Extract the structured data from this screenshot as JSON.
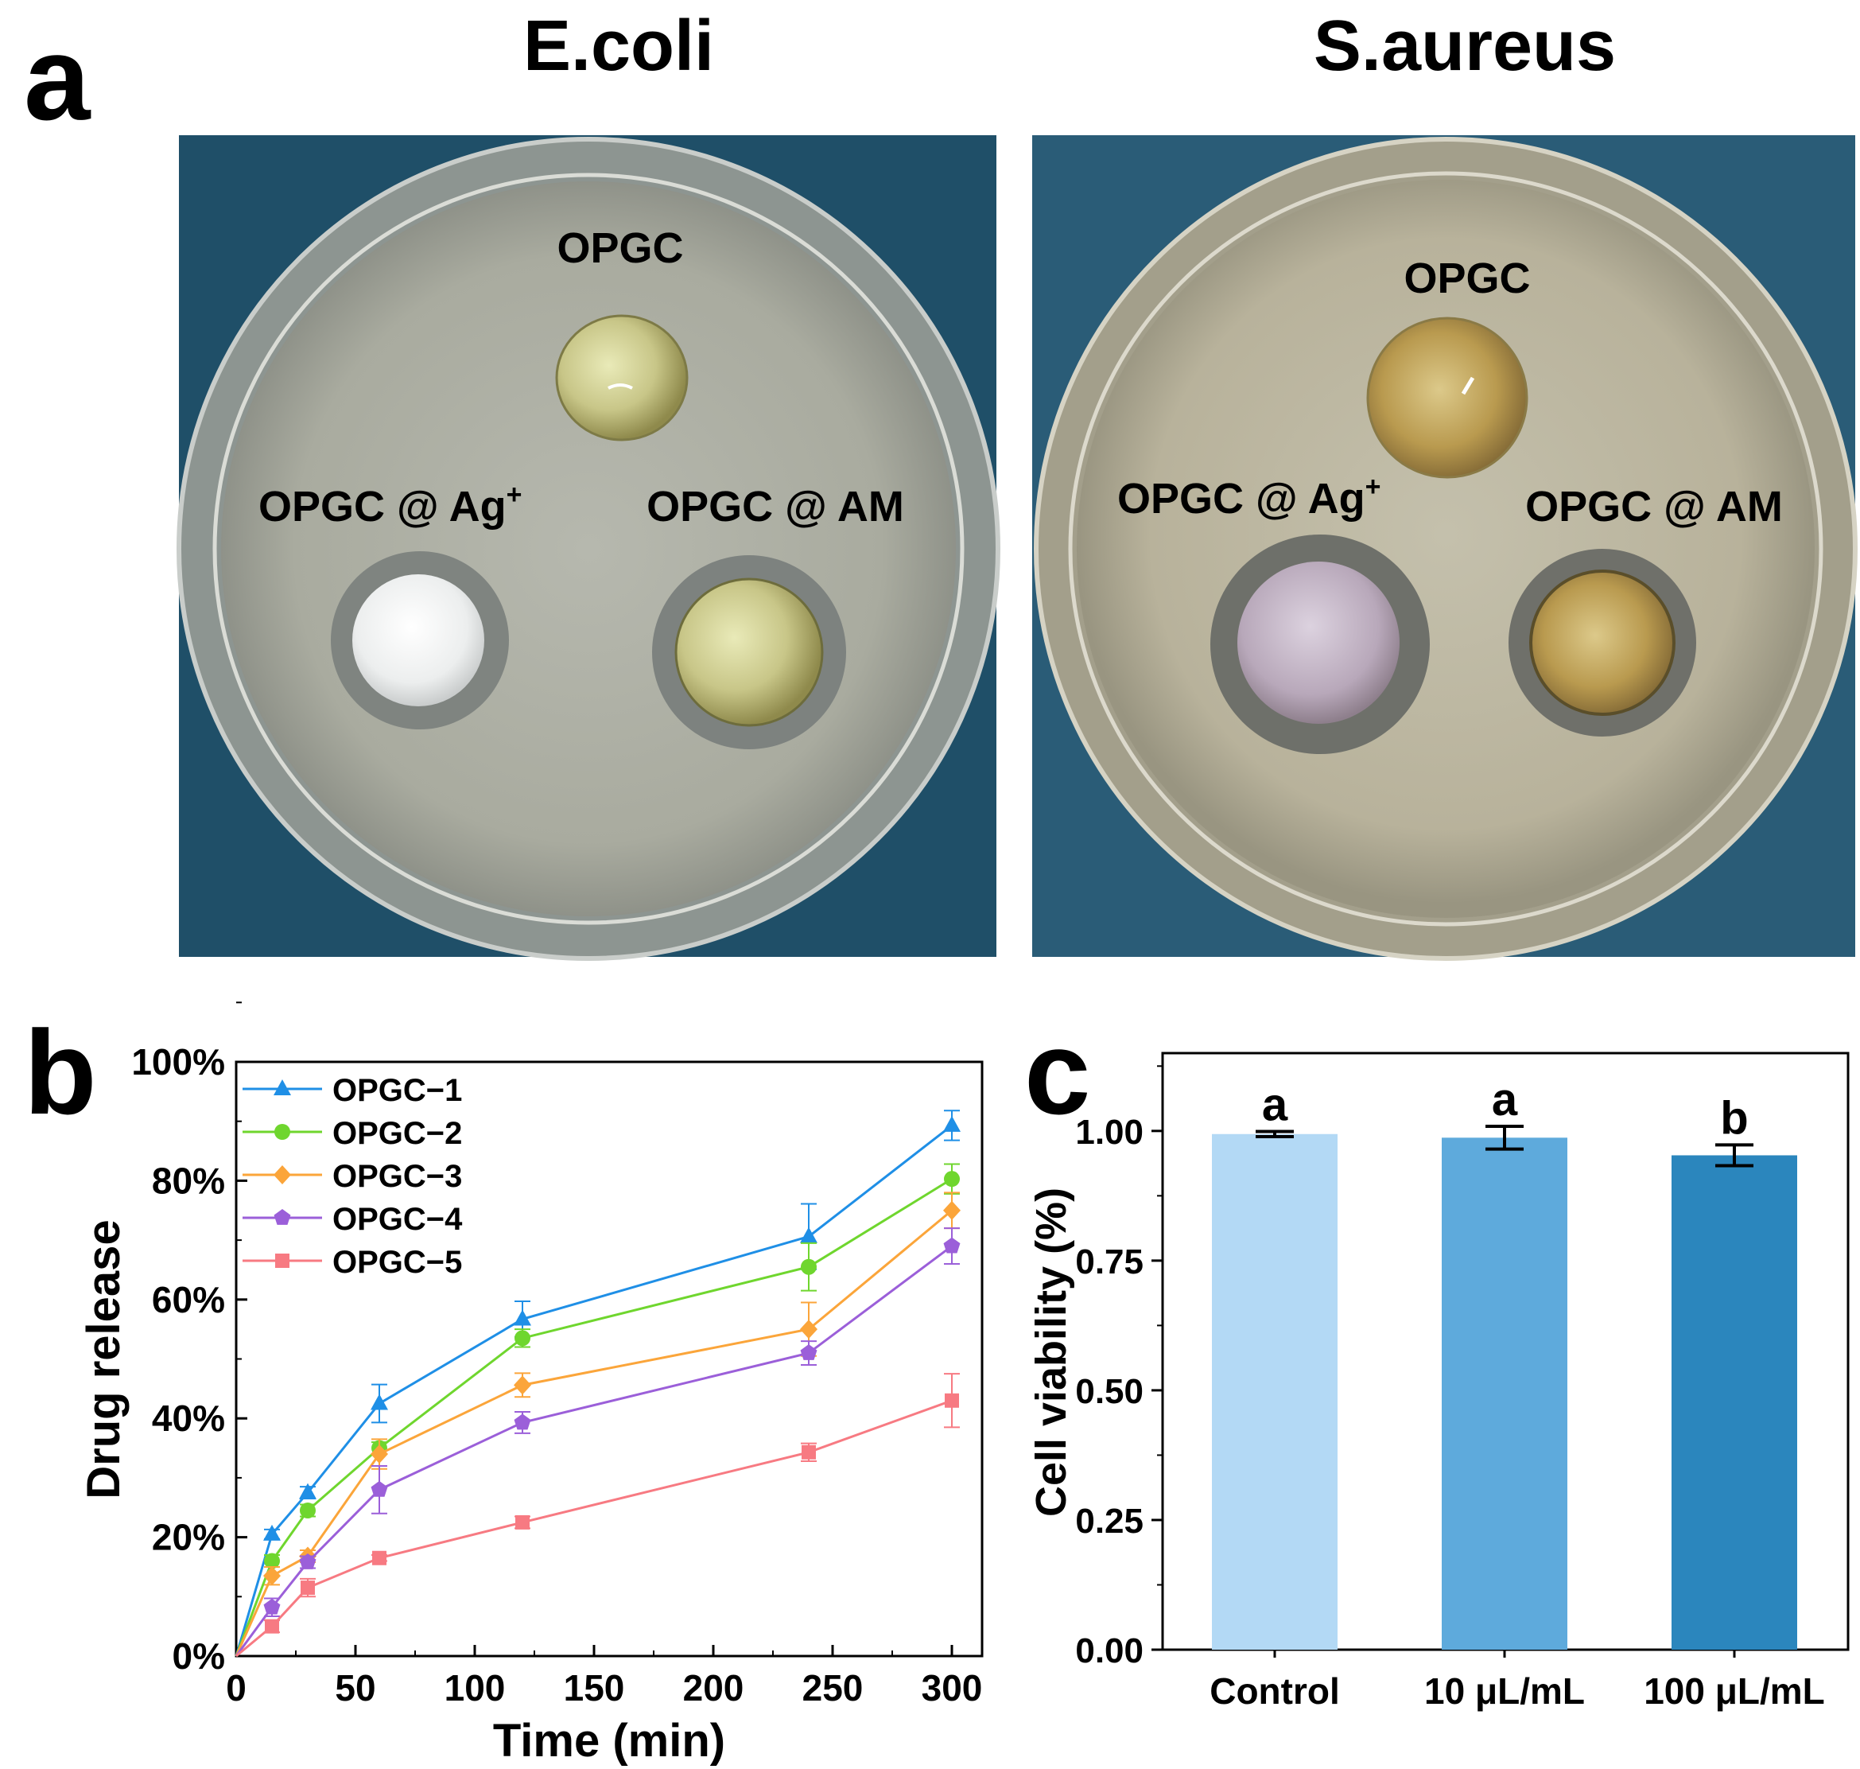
{
  "panel_a": {
    "label": "a",
    "plates": [
      {
        "title": "E.coli",
        "labels": {
          "top": "OPGC",
          "left": "OPGC @ Ag",
          "left_sup": "+",
          "right": "OPGC @ AM"
        }
      },
      {
        "title": "S.aureus",
        "labels": {
          "top": "OPGC",
          "left": "OPGC @ Ag",
          "left_sup": "+",
          "right": "OPGC @ AM"
        }
      }
    ]
  },
  "chart_data": [
    {
      "panel": "b",
      "type": "line",
      "xlabel": "Time (min)",
      "ylabel": "Drug release",
      "xlim": [
        0,
        310
      ],
      "ylim": [
        0,
        100
      ],
      "xticks": [
        "0",
        "50",
        "100",
        "150",
        "200",
        "250",
        "300"
      ],
      "yticks": [
        "0%",
        "20%",
        "40%",
        "60%",
        "80%",
        "100%"
      ],
      "legend_position": "top-left",
      "x": [
        0,
        15,
        30,
        60,
        120,
        240,
        300
      ],
      "series": [
        {
          "name": "OPGC-1",
          "color": "#1f8fe6",
          "marker": "triangle",
          "values": [
            0,
            20.5,
            27.5,
            42.5,
            56.7,
            70.6,
            89.3
          ],
          "errors": [
            0,
            0.8,
            1.0,
            3.2,
            3.0,
            5.5,
            2.5
          ]
        },
        {
          "name": "OPGC-2",
          "color": "#6fd62e",
          "marker": "circle",
          "values": [
            0,
            16.0,
            24.5,
            35.0,
            53.5,
            65.5,
            80.3
          ],
          "errors": [
            0,
            1.0,
            1.0,
            1.0,
            1.5,
            4.0,
            2.5
          ]
        },
        {
          "name": "OPGC-3",
          "color": "#fba53a",
          "marker": "diamond",
          "values": [
            0,
            13.5,
            16.8,
            34.0,
            45.6,
            55.0,
            75.0
          ],
          "errors": [
            0,
            1.5,
            1.0,
            2.5,
            2.0,
            4.5,
            3.0
          ]
        },
        {
          "name": "OPGC-4",
          "color": "#9b5fd9",
          "marker": "pentagon",
          "values": [
            0,
            8.2,
            15.8,
            28.0,
            39.3,
            51.0,
            69.0
          ],
          "errors": [
            0,
            1.5,
            1.0,
            4.0,
            1.8,
            2.0,
            3.0
          ]
        },
        {
          "name": "OPGC-5",
          "color": "#f77a82",
          "marker": "square",
          "values": [
            0,
            5.0,
            11.5,
            16.5,
            22.5,
            34.3,
            43.0
          ],
          "errors": [
            0,
            1.0,
            1.5,
            0.5,
            1.0,
            1.5,
            4.5
          ]
        }
      ]
    },
    {
      "panel": "c",
      "type": "bar",
      "xlabel": "",
      "ylabel": "Cell viability (%)",
      "ylim": [
        0,
        1.15
      ],
      "yticks": [
        "0.00",
        "0.25",
        "0.50",
        "0.75",
        "1.00"
      ],
      "categories": [
        "Control",
        "10 μL/mL",
        "100 μL/mL"
      ],
      "values": [
        0.994,
        0.987,
        0.953
      ],
      "errors": [
        0.005,
        0.022,
        0.02
      ],
      "significance": [
        "a",
        "a",
        "b"
      ],
      "colors": [
        "#b3d9f5",
        "#5eaadc",
        "#2b86bd"
      ]
    }
  ]
}
